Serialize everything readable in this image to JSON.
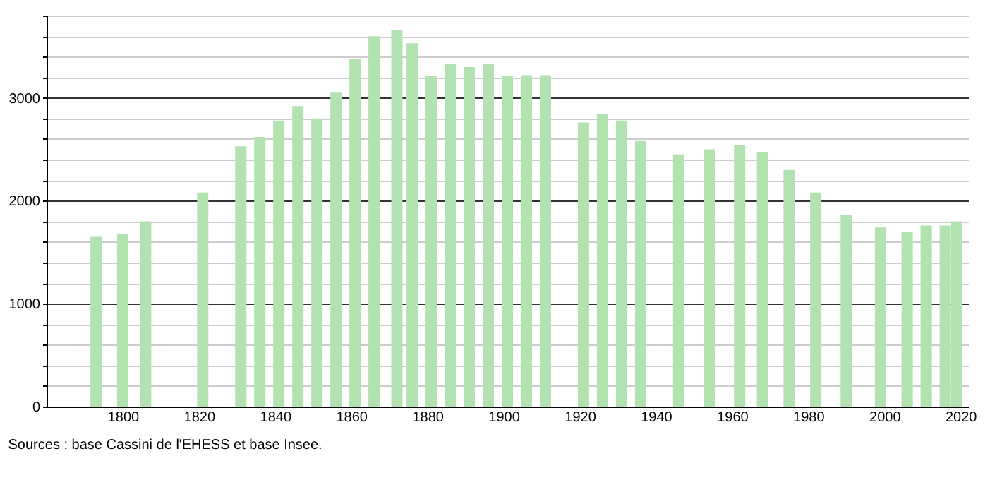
{
  "chart_data": {
    "type": "bar",
    "x": [
      1793,
      1800,
      1806,
      1821,
      1831,
      1836,
      1841,
      1846,
      1851,
      1856,
      1861,
      1866,
      1872,
      1876,
      1881,
      1886,
      1891,
      1896,
      1901,
      1906,
      1911,
      1921,
      1926,
      1931,
      1936,
      1946,
      1954,
      1962,
      1968,
      1975,
      1982,
      1990,
      1999,
      2006,
      2011,
      2016,
      2019
    ],
    "values": [
      1650,
      1680,
      1800,
      2080,
      2530,
      2620,
      2780,
      2920,
      2800,
      3050,
      3380,
      3600,
      3660,
      3530,
      3210,
      3330,
      3300,
      3330,
      3210,
      3220,
      3220,
      2760,
      2840,
      2780,
      2580,
      2450,
      2500,
      2540,
      2470,
      2300,
      2080,
      1860,
      1740,
      1700,
      1760,
      1760,
      1800
    ],
    "color": "#b3e2b1",
    "xlim": [
      1780,
      2022
    ],
    "xticks": [
      1800,
      1820,
      1840,
      1860,
      1880,
      1900,
      1920,
      1940,
      1960,
      1980,
      2000,
      2020
    ],
    "ylim": [
      0,
      3800
    ],
    "yticks": [
      0,
      {
        "value": 200,
        "label": null
      },
      {
        "value": 400,
        "label": null
      },
      {
        "value": 600,
        "label": null
      },
      {
        "value": 800,
        "label": null
      },
      1000,
      {
        "value": 1200,
        "label": null
      },
      {
        "value": 1400,
        "label": null
      },
      {
        "value": 1600,
        "label": null
      },
      {
        "value": 1800,
        "label": null
      },
      2000,
      {
        "value": 2200,
        "label": null
      },
      {
        "value": 2400,
        "label": null
      },
      {
        "value": 2600,
        "label": null
      },
      {
        "value": 2800,
        "label": null
      },
      3000,
      {
        "value": 3200,
        "label": null
      },
      {
        "value": 3400,
        "label": null
      },
      {
        "value": 3600,
        "label": null
      },
      {
        "value": 3800,
        "label": null
      }
    ],
    "grid": "y",
    "annotations": [
      "Sources : base Cassini de l'EHESS et base Insee."
    ]
  }
}
